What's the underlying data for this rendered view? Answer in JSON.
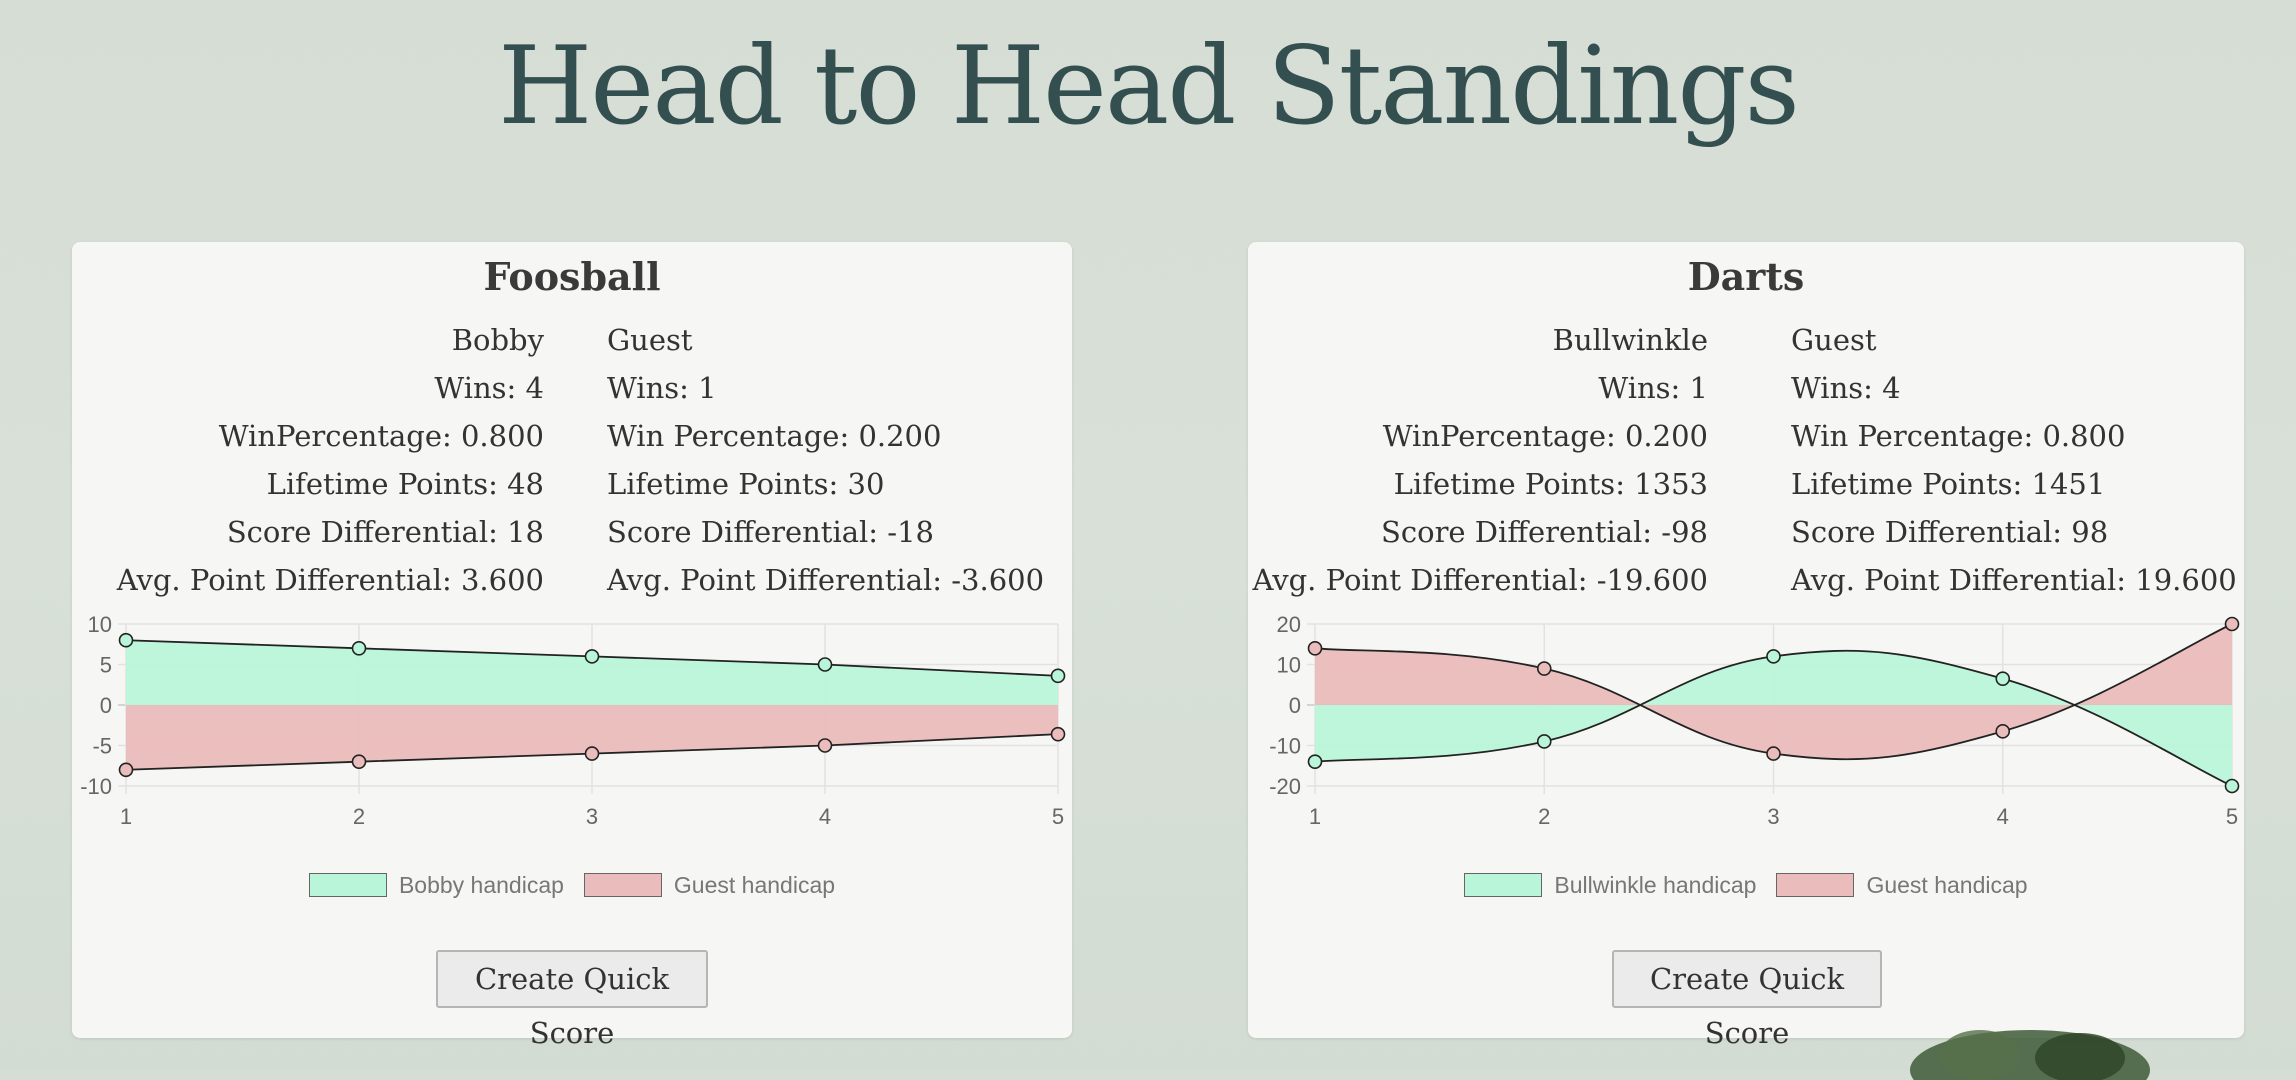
{
  "page": {
    "title": "Head to Head Standings"
  },
  "cards": [
    {
      "id": "foosball",
      "title": "Foosball",
      "player1": {
        "name": "Bobby",
        "wins": "Wins: 4",
        "win_pct": "WinPercentage: 0.800",
        "lifetime": "Lifetime Points: 48",
        "diff": "Score Differential: 18",
        "avg": "Avg. Point Differential: 3.600"
      },
      "player2": {
        "name": "Guest",
        "wins": "Wins: 1",
        "win_pct": "Win Percentage: 0.200",
        "lifetime": "Lifetime Points: 30",
        "diff": "Score Differential: -18",
        "avg": "Avg. Point Differential: -3.600"
      },
      "button_label": "Create Quick Score"
    },
    {
      "id": "darts",
      "title": "Darts",
      "player1": {
        "name": "Bullwinkle",
        "wins": "Wins: 1",
        "win_pct": "WinPercentage: 0.200",
        "lifetime": "Lifetime Points: 1353",
        "diff": "Score Differential: -98",
        "avg": "Avg. Point Differential: -19.600"
      },
      "player2": {
        "name": "Guest",
        "wins": "Wins: 4",
        "win_pct": "Win Percentage: 0.800",
        "lifetime": "Lifetime Points: 1451",
        "diff": "Score Differential: 98",
        "avg": "Avg. Point Differential: 19.600"
      },
      "button_label": "Create Quick Score"
    }
  ],
  "chart_data": [
    {
      "type": "area",
      "x": [
        1,
        2,
        3,
        4,
        5
      ],
      "ylim": [
        -10,
        10
      ],
      "yticks": [
        10,
        5,
        0,
        -5,
        -10
      ],
      "grid": true,
      "legend": "bottom",
      "series": [
        {
          "name": "Bobby handicap",
          "values": [
            8,
            7,
            6,
            5,
            3.6
          ],
          "color": "#b9f5d8"
        },
        {
          "name": "Guest handicap",
          "values": [
            -8,
            -7,
            -6,
            -5,
            -3.6
          ],
          "color": "#ebbcbc"
        }
      ]
    },
    {
      "type": "area",
      "x": [
        1,
        2,
        3,
        4,
        5
      ],
      "ylim": [
        -20,
        20
      ],
      "yticks": [
        20,
        10,
        0,
        -10,
        -20
      ],
      "grid": true,
      "legend": "bottom",
      "series": [
        {
          "name": "Bullwinkle handicap",
          "values": [
            -14,
            -9,
            12,
            6.5,
            -20
          ],
          "color": "#b9f5d8"
        },
        {
          "name": "Guest handicap",
          "values": [
            14,
            9,
            -12,
            -6.5,
            20
          ],
          "color": "#ebbcbc"
        }
      ]
    }
  ]
}
